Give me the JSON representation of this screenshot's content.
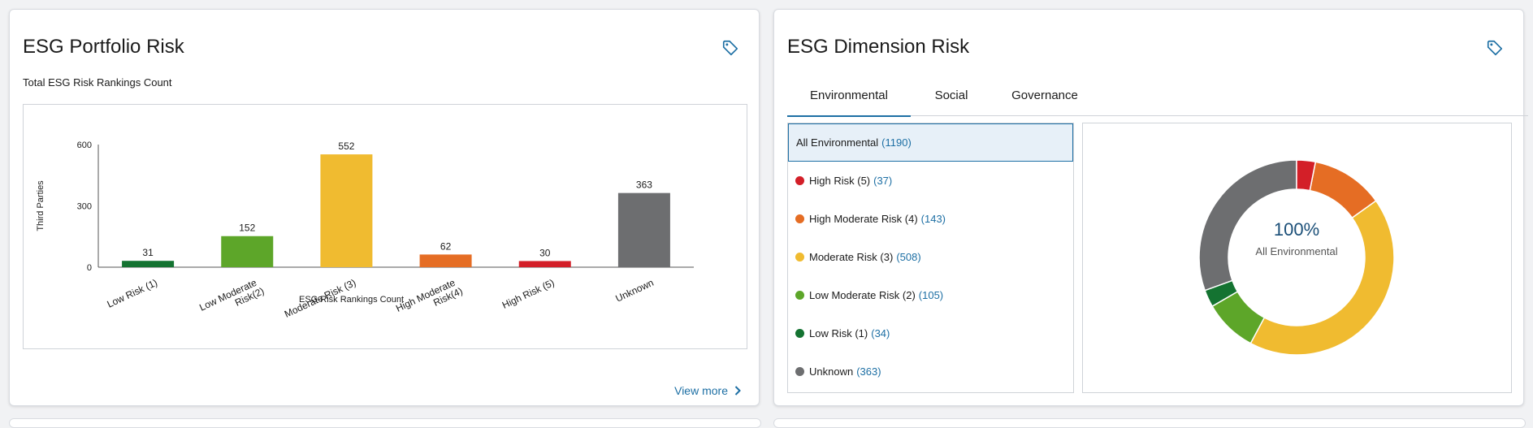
{
  "left_card": {
    "title": "ESG Portfolio Risk",
    "subtitle": "Total ESG Risk Rankings Count",
    "view_more": "View more"
  },
  "chart_data": {
    "type": "bar",
    "categories": [
      "Low Risk (1)",
      "Low Moderate Risk(2)",
      "Moderate Risk (3)",
      "High Moderate Risk(4)",
      "High Risk (5)",
      "Unknown"
    ],
    "category_lines": [
      [
        "Low Risk (1)"
      ],
      [
        "Low Moderate",
        "Risk(2)"
      ],
      [
        "Moderate Risk (3)"
      ],
      [
        "High Moderate",
        "Risk(4)"
      ],
      [
        "High Risk (5)"
      ],
      [
        "Unknown"
      ]
    ],
    "values": [
      31,
      152,
      552,
      62,
      30,
      363
    ],
    "value_labels": [
      "31",
      "152",
      "552",
      "62",
      "30",
      "363"
    ],
    "colors": [
      "#147331",
      "#5da629",
      "#f0bb30",
      "#e56d24",
      "#d31f28",
      "#6d6e70"
    ],
    "xlabel": "ESG Risk Rankings Count",
    "ylabel": "Third Parties",
    "ylim": [
      0,
      600
    ],
    "yticks": [
      0,
      300,
      600
    ],
    "ytick_labels": [
      "0",
      "300",
      "600"
    ],
    "grid": false
  },
  "right_card": {
    "title": "ESG Dimension Risk",
    "tabs": [
      {
        "label": "Environmental",
        "active": true
      },
      {
        "label": "Social",
        "active": false
      },
      {
        "label": "Governance",
        "active": false
      }
    ],
    "list": [
      {
        "label": "All Environmental",
        "count": "(1190)",
        "selected": true
      },
      {
        "label": "High Risk (5)",
        "count": "(37)",
        "color": "#d31f28"
      },
      {
        "label": "High Moderate Risk (4)",
        "count": "(143)",
        "color": "#e56d24"
      },
      {
        "label": "Moderate Risk (3)",
        "count": "(508)",
        "color": "#f0bb30"
      },
      {
        "label": "Low Moderate Risk (2)",
        "count": "(105)",
        "color": "#5da629"
      },
      {
        "label": "Low Risk (1)",
        "count": "(34)",
        "color": "#147331"
      },
      {
        "label": "Unknown",
        "count": "(363)",
        "color": "#6d6e70"
      }
    ],
    "donut": {
      "center_value": "100%",
      "center_label": "All Environmental",
      "values": [
        37,
        143,
        508,
        105,
        34,
        363
      ],
      "colors": [
        "#d31f28",
        "#e56d24",
        "#f0bb30",
        "#5da629",
        "#147331",
        "#6d6e70"
      ]
    }
  },
  "icons": {
    "tag": "tag-icon",
    "chevron": "chevron-right-icon"
  },
  "accent_color": "#1d6fa4"
}
